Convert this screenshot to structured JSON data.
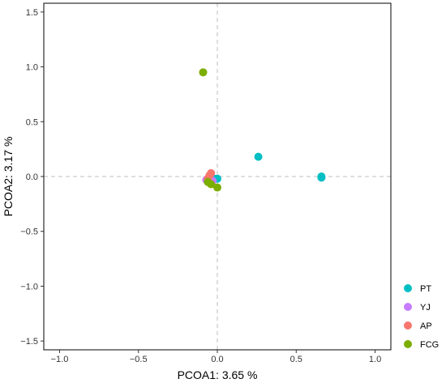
{
  "chart_data": {
    "type": "scatter",
    "title": "",
    "xlabel": "PCOA1:  3.65 %",
    "ylabel": "PCOA2:  3.17 %",
    "xlim": [
      -1.1,
      1.1
    ],
    "ylim": [
      -1.58,
      1.58
    ],
    "x_ticks": [
      -1.0,
      -0.5,
      0.0,
      0.5,
      1.0
    ],
    "x_tick_labels": [
      "−1.0",
      "−0.5",
      "0.0",
      "0.5",
      "1.0"
    ],
    "y_ticks": [
      -1.5,
      -1.0,
      -0.5,
      0.0,
      0.5,
      1.0,
      1.5
    ],
    "y_tick_labels": [
      "−1.5",
      "−1.0",
      "−0.5",
      "0.0",
      "0.5",
      "1.0",
      "1.5"
    ],
    "grid": false,
    "reference_lines": {
      "x": 0,
      "y": 0,
      "style": "dashed"
    },
    "legend_position": "right-bottom",
    "series": [
      {
        "name": "PT",
        "color": "#00BFC4",
        "points": [
          [
            0.26,
            0.18
          ],
          [
            0.66,
            0.0
          ],
          [
            0.66,
            -0.01
          ],
          [
            0.0,
            -0.02
          ],
          [
            -0.02,
            -0.02
          ]
        ]
      },
      {
        "name": "YJ",
        "color": "#C77CFF",
        "points": [
          [
            -0.06,
            -0.03
          ],
          [
            -0.04,
            -0.04
          ],
          [
            -0.05,
            -0.02
          ],
          [
            -0.03,
            -0.04
          ],
          [
            -0.07,
            -0.03
          ]
        ]
      },
      {
        "name": "AP",
        "color": "#F8766D",
        "points": [
          [
            -0.04,
            0.03
          ],
          [
            -0.05,
            0.01
          ],
          [
            -0.06,
            -0.02
          ]
        ]
      },
      {
        "name": "FCG",
        "color": "#7CAE00",
        "points": [
          [
            -0.09,
            0.95
          ],
          [
            0.0,
            -0.1
          ],
          [
            -0.04,
            -0.07
          ],
          [
            -0.06,
            -0.05
          ]
        ]
      }
    ]
  }
}
